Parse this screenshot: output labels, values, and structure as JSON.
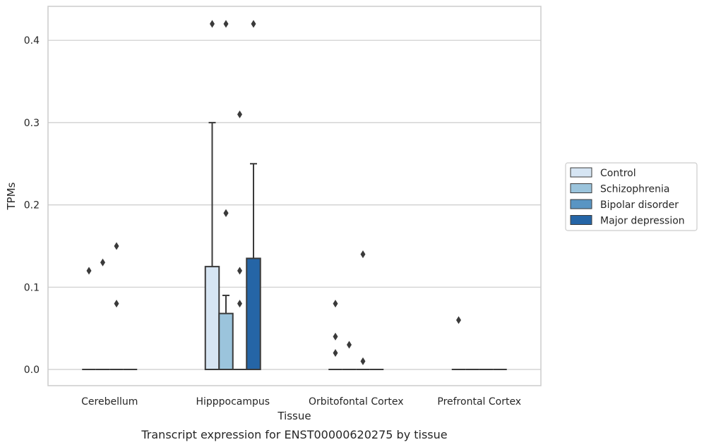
{
  "colors": {
    "Control": "#d6e5f3",
    "Schizophrenia": "#9bc4dc",
    "Bipolar disorder": "#5995c3",
    "Major depression": "#2565a6",
    "edge": "#3a3a3a",
    "grid": "#cccccc",
    "frame": "#cccccc"
  },
  "chart_data": {
    "type": "box",
    "title": "",
    "caption": "Transcript expression for ENST00000620275 by tissue",
    "xlabel": "Tissue",
    "ylabel": "TPMs",
    "ylim": [
      -0.02,
      0.441
    ],
    "yticks": [
      0.0,
      0.1,
      0.2,
      0.3,
      0.4
    ],
    "ytick_labels": [
      "0.0",
      "0.1",
      "0.2",
      "0.3",
      "0.4"
    ],
    "grid": true,
    "legend_position": "right",
    "categories": [
      "Cerebellum",
      "Hipppocampus",
      "Orbitofontal Cortex",
      "Prefrontal Cortex"
    ],
    "series": [
      {
        "name": "Control",
        "boxes": [
          {
            "q1": 0,
            "median": 0,
            "q3": 0,
            "whisker_low": 0,
            "whisker_high": 0,
            "outliers": [
              0.12
            ]
          },
          {
            "q1": 0,
            "median": 0,
            "q3": 0.125,
            "whisker_low": 0,
            "whisker_high": 0.3,
            "outliers": [
              0.42
            ]
          },
          {
            "q1": 0,
            "median": 0,
            "q3": 0,
            "whisker_low": 0,
            "whisker_high": 0,
            "outliers": [
              0.08,
              0.04,
              0.02
            ]
          },
          {
            "q1": 0,
            "median": 0,
            "q3": 0,
            "whisker_low": 0,
            "whisker_high": 0,
            "outliers": [
              0.06
            ]
          }
        ]
      },
      {
        "name": "Schizophrenia",
        "boxes": [
          {
            "q1": 0,
            "median": 0,
            "q3": 0,
            "whisker_low": 0,
            "whisker_high": 0,
            "outliers": [
              0.13
            ]
          },
          {
            "q1": 0,
            "median": 0,
            "q3": 0.068,
            "whisker_low": 0,
            "whisker_high": 0.09,
            "outliers": [
              0.42,
              0.19,
              0.19
            ]
          },
          {
            "q1": 0,
            "median": 0,
            "q3": 0,
            "whisker_low": 0,
            "whisker_high": 0,
            "outliers": [
              0.03
            ]
          },
          {
            "q1": 0,
            "median": 0,
            "q3": 0,
            "whisker_low": 0,
            "whisker_high": 0,
            "outliers": []
          }
        ]
      },
      {
        "name": "Bipolar disorder",
        "boxes": [
          {
            "q1": 0,
            "median": 0,
            "q3": 0,
            "whisker_low": 0,
            "whisker_high": 0,
            "outliers": [
              0.15,
              0.08
            ]
          },
          {
            "q1": 0,
            "median": 0,
            "q3": 0,
            "whisker_low": 0,
            "whisker_high": 0,
            "outliers": [
              0.31,
              0.12,
              0.08
            ]
          },
          {
            "q1": 0,
            "median": 0,
            "q3": 0,
            "whisker_low": 0,
            "whisker_high": 0,
            "outliers": [
              0.14,
              0.01
            ]
          },
          {
            "q1": 0,
            "median": 0,
            "q3": 0,
            "whisker_low": 0,
            "whisker_high": 0,
            "outliers": []
          }
        ]
      },
      {
        "name": "Major depression",
        "boxes": [
          {
            "q1": 0,
            "median": 0,
            "q3": 0,
            "whisker_low": 0,
            "whisker_high": 0,
            "outliers": []
          },
          {
            "q1": 0,
            "median": 0,
            "q3": 0.135,
            "whisker_low": 0,
            "whisker_high": 0.25,
            "outliers": [
              0.42
            ]
          },
          {
            "q1": 0,
            "median": 0,
            "q3": 0,
            "whisker_low": 0,
            "whisker_high": 0,
            "outliers": []
          },
          {
            "q1": 0,
            "median": 0,
            "q3": 0,
            "whisker_low": 0,
            "whisker_high": 0,
            "outliers": []
          }
        ]
      }
    ]
  }
}
